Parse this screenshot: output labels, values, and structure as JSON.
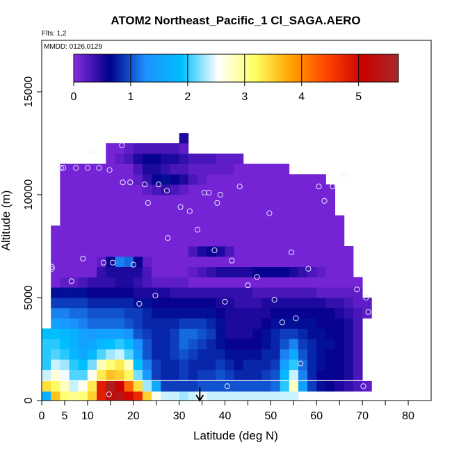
{
  "chart_data": {
    "type": "heatmap",
    "title": "ATOM2 Northeast_Pacific_1 Cl_SAGA.AERO",
    "flights_label": "Flts: 1,2",
    "dates_label": "MMDD: 0126,0129",
    "xlabel": "Latitude (deg N)",
    "ylabel": "Altitude (m)",
    "xlim": [
      0,
      85
    ],
    "ylim": [
      0,
      17500
    ],
    "x_ticks": [
      0,
      5,
      10,
      20,
      30,
      40,
      50,
      60,
      70,
      80
    ],
    "x_ticks_unlabeled": [
      15,
      25,
      35,
      45,
      55,
      65,
      75
    ],
    "y_ticks": [
      0,
      5000,
      10000,
      15000
    ],
    "colorbar": {
      "min": 0,
      "max": 5.7,
      "ticks": [
        0,
        1,
        2,
        3,
        4,
        5
      ],
      "colors": [
        "#8a2be2",
        "#00008b",
        "#1e90ff",
        "#00bfff",
        "#ffffff",
        "#ffff66",
        "#ffa500",
        "#ff4500",
        "#cc0000",
        "#a52a2a"
      ]
    },
    "arrow_latitude": 34.5,
    "lat_columns": [
      1,
      3,
      5,
      7,
      9,
      11,
      13,
      15,
      17,
      19,
      21,
      23,
      25,
      27,
      29,
      31,
      33,
      35,
      37,
      39,
      41,
      43,
      45,
      47,
      49,
      51,
      53,
      55,
      57,
      59,
      61,
      63,
      65,
      67,
      69,
      71
    ],
    "alt_bands": [
      {
        "alt": 250,
        "values": [
          1.7,
          3.6,
          3.1,
          3.0,
          3.1,
          3.5,
          4.8,
          5.3,
          5.4,
          5.0,
          4.7,
          3.5,
          2.6,
          2.4,
          2.4,
          2.3,
          2.4,
          2.5,
          2.4,
          2.4,
          2.4,
          2.4,
          2.4,
          2.4,
          2.4,
          2.4,
          2.4,
          2.4,
          null,
          null,
          null,
          null,
          null,
          null,
          null,
          null
        ]
      },
      {
        "alt": 700,
        "values": [
          3.4,
          3.2,
          2.8,
          2.4,
          2.6,
          3.3,
          4.8,
          5.5,
          5.1,
          4.2,
          3.4,
          2.3,
          1.6,
          0.9,
          0.9,
          0.9,
          0.9,
          1.0,
          1.0,
          1.0,
          1.0,
          1.0,
          1.0,
          1.0,
          1.0,
          1.1,
          2.0,
          2.8,
          1.5,
          0.9,
          0.7,
          0.6,
          0.5,
          0.4,
          0.3,
          0.2
        ]
      },
      {
        "alt": 1250,
        "values": [
          2.4,
          2.7,
          2.5,
          2.1,
          2.1,
          2.6,
          3.3,
          3.6,
          3.5,
          3.2,
          2.2,
          1.4,
          0.9,
          0.8,
          0.8,
          0.9,
          0.8,
          0.9,
          0.9,
          1.0,
          0.9,
          0.8,
          0.8,
          0.8,
          0.9,
          1.0,
          1.8,
          2.4,
          1.2,
          0.8,
          0.6,
          0.6,
          0.6,
          0.5,
          0.3,
          null
        ]
      },
      {
        "alt": 1750,
        "values": [
          2.0,
          2.4,
          2.3,
          2.0,
          1.9,
          2.2,
          2.8,
          3.1,
          3.3,
          2.8,
          1.9,
          1.2,
          0.9,
          0.8,
          0.8,
          0.9,
          0.8,
          0.8,
          0.8,
          0.9,
          0.8,
          0.7,
          0.8,
          0.8,
          0.8,
          0.9,
          1.5,
          2.0,
          1.1,
          0.8,
          0.7,
          0.6,
          0.6,
          0.5,
          0.3,
          null
        ]
      },
      {
        "alt": 2250,
        "values": [
          2.0,
          2.1,
          2.0,
          1.8,
          1.6,
          1.8,
          2.1,
          2.3,
          2.4,
          2.1,
          1.5,
          1.0,
          0.8,
          0.8,
          0.9,
          1.0,
          0.9,
          0.8,
          0.8,
          0.8,
          0.7,
          0.7,
          0.7,
          0.7,
          0.8,
          0.8,
          1.2,
          1.6,
          1.0,
          0.8,
          0.7,
          0.6,
          0.6,
          0.5,
          0.3,
          null
        ]
      },
      {
        "alt": 2750,
        "values": [
          2.0,
          2.0,
          1.9,
          1.7,
          1.5,
          1.6,
          1.8,
          1.9,
          2.0,
          1.8,
          1.3,
          1.0,
          0.8,
          0.8,
          0.9,
          1.1,
          1.0,
          0.9,
          0.8,
          0.7,
          0.6,
          0.6,
          0.6,
          0.6,
          0.7,
          0.8,
          1.0,
          1.2,
          0.9,
          0.8,
          0.7,
          0.7,
          0.6,
          0.5,
          0.3,
          null
        ]
      },
      {
        "alt": 3250,
        "values": [
          1.9,
          1.9,
          1.8,
          1.7,
          1.5,
          1.4,
          1.5,
          1.5,
          1.5,
          1.3,
          1.0,
          0.9,
          0.8,
          0.8,
          0.9,
          1.1,
          1.1,
          1.0,
          0.9,
          0.7,
          0.5,
          0.5,
          0.5,
          0.6,
          0.7,
          0.8,
          0.9,
          0.9,
          0.8,
          0.7,
          0.7,
          0.6,
          0.6,
          0.5,
          0.3,
          null
        ]
      },
      {
        "alt": 3750,
        "values": [
          null,
          1.5,
          1.4,
          1.3,
          1.2,
          1.1,
          1.1,
          1.1,
          1.1,
          1.0,
          0.9,
          0.8,
          0.8,
          0.8,
          0.8,
          0.9,
          0.9,
          0.9,
          0.8,
          0.7,
          0.5,
          0.5,
          0.5,
          0.5,
          0.6,
          0.7,
          0.7,
          0.7,
          0.7,
          0.7,
          0.6,
          0.6,
          0.6,
          0.5,
          0.3,
          null
        ]
      },
      {
        "alt": 4250,
        "values": [
          null,
          1.2,
          1.2,
          1.1,
          1.1,
          1.0,
          1.0,
          1.0,
          1.0,
          0.9,
          0.9,
          0.8,
          0.7,
          0.7,
          0.7,
          0.7,
          0.7,
          0.7,
          0.7,
          0.6,
          0.5,
          0.5,
          0.5,
          0.5,
          0.5,
          0.6,
          0.6,
          0.6,
          0.6,
          0.6,
          0.6,
          0.6,
          0.5,
          0.4,
          0.3,
          0.2
        ]
      },
      {
        "alt": 4750,
        "values": [
          null,
          0.9,
          0.9,
          0.9,
          0.9,
          0.8,
          0.8,
          0.8,
          0.8,
          0.8,
          0.7,
          0.7,
          0.6,
          0.6,
          0.6,
          0.6,
          0.6,
          0.6,
          0.6,
          0.5,
          0.5,
          0.4,
          0.4,
          0.4,
          0.5,
          0.5,
          0.5,
          0.5,
          0.5,
          0.5,
          0.5,
          0.4,
          0.4,
          0.3,
          0.2,
          0.2
        ]
      },
      {
        "alt": 5250,
        "values": [
          null,
          0.7,
          0.7,
          0.7,
          0.7,
          0.6,
          0.6,
          0.6,
          0.6,
          0.6,
          0.5,
          0.5,
          0.5,
          0.5,
          0.4,
          0.4,
          0.4,
          0.4,
          0.4,
          0.4,
          0.4,
          0.4,
          0.4,
          0.3,
          0.3,
          0.3,
          0.3,
          0.3,
          0.3,
          0.3,
          0.2,
          0.2,
          0.2,
          0.2,
          0.2,
          null
        ]
      },
      {
        "alt": 5750,
        "values": [
          null,
          0.1,
          0.2,
          0.2,
          0.3,
          0.4,
          0.4,
          0.4,
          0.5,
          0.5,
          0.4,
          0.3,
          0.2,
          0.2,
          0.2,
          0.2,
          0.1,
          0.1,
          0.1,
          0.1,
          0.1,
          0.1,
          0.1,
          0.1,
          0.1,
          0.1,
          0.1,
          0.1,
          0.1,
          0.1,
          0.1,
          0.1,
          0.1,
          0.1,
          0.1,
          null
        ]
      },
      {
        "alt": 6250,
        "values": [
          null,
          0.1,
          0.1,
          0.1,
          0.1,
          0.1,
          0.4,
          0.5,
          0.5,
          0.5,
          0.5,
          0.3,
          0.1,
          0.1,
          0.1,
          0.1,
          0.2,
          0.3,
          0.4,
          0.5,
          0.5,
          0.5,
          0.5,
          0.6,
          0.6,
          0.6,
          0.6,
          0.5,
          0.4,
          0.3,
          0.2,
          0.1,
          0.1,
          0.1,
          null,
          null
        ]
      },
      {
        "alt": 6750,
        "values": [
          null,
          0.1,
          0.1,
          0.1,
          0.1,
          0.1,
          0.2,
          0.6,
          1.2,
          1.1,
          0.6,
          0.2,
          0.1,
          0.1,
          0.1,
          0.1,
          0.1,
          0.1,
          0.1,
          0.1,
          0.1,
          0.1,
          0.1,
          0.1,
          0.1,
          0.1,
          0.1,
          0.1,
          0.1,
          0.1,
          0.1,
          0.1,
          0.1,
          0.1,
          null,
          null
        ]
      },
      {
        "alt": 7250,
        "values": [
          null,
          0.1,
          0.1,
          0.1,
          0.1,
          0.1,
          0.1,
          0.1,
          0.1,
          0.1,
          0.1,
          0.1,
          0.1,
          0.1,
          0.1,
          0.1,
          0.3,
          0.5,
          0.6,
          0.5,
          0.3,
          0.1,
          0.1,
          0.1,
          0.1,
          0.1,
          0.1,
          0.1,
          0.1,
          0.1,
          0.1,
          0.1,
          0.1,
          0.1,
          null,
          null
        ]
      },
      {
        "alt": 7750,
        "values": [
          null,
          0.1,
          0.1,
          0.1,
          0.1,
          0.1,
          0.1,
          0.1,
          0.1,
          0.1,
          0.1,
          0.1,
          0.1,
          0.1,
          0.1,
          0.1,
          0.1,
          0.1,
          0.1,
          0.1,
          0.1,
          0.1,
          0.1,
          0.1,
          0.1,
          0.1,
          0.1,
          0.1,
          0.1,
          0.1,
          0.1,
          0.1,
          0.1,
          null,
          null,
          null
        ]
      },
      {
        "alt": 8250,
        "values": [
          null,
          0.1,
          0.1,
          0.1,
          0.1,
          0.1,
          0.1,
          0.1,
          0.1,
          0.1,
          0.1,
          0.1,
          0.1,
          0.1,
          0.1,
          0.1,
          0.1,
          0.1,
          0.1,
          0.1,
          0.1,
          0.1,
          0.1,
          0.1,
          0.1,
          0.1,
          0.1,
          0.1,
          0.1,
          0.1,
          0.1,
          0.1,
          0.1,
          null,
          null,
          null
        ]
      },
      {
        "alt": 8750,
        "values": [
          null,
          null,
          0.1,
          0.1,
          0.1,
          0.1,
          0.1,
          0.1,
          0.1,
          0.1,
          0.1,
          0.1,
          0.1,
          0.1,
          0.1,
          0.1,
          0.1,
          0.1,
          0.1,
          0.1,
          0.1,
          0.1,
          0.1,
          0.1,
          0.1,
          0.1,
          0.1,
          0.1,
          0.1,
          0.1,
          0.1,
          0.1,
          0.1,
          null,
          null,
          null
        ]
      },
      {
        "alt": 9250,
        "values": [
          null,
          null,
          0.1,
          0.1,
          0.1,
          0.1,
          0.1,
          0.1,
          0.1,
          0.1,
          0.1,
          0.1,
          0.1,
          0.1,
          0.1,
          0.1,
          0.1,
          0.1,
          0.1,
          0.1,
          0.1,
          0.1,
          0.1,
          0.1,
          0.1,
          0.1,
          0.1,
          0.1,
          0.1,
          0.1,
          0.1,
          0.1,
          null,
          null,
          null,
          null
        ]
      },
      {
        "alt": 9750,
        "values": [
          null,
          null,
          0.1,
          0.1,
          0.1,
          0.1,
          0.1,
          0.1,
          0.1,
          0.1,
          0.1,
          0.1,
          0.1,
          0.1,
          0.1,
          0.1,
          0.1,
          0.1,
          0.1,
          0.1,
          0.1,
          0.1,
          0.1,
          0.1,
          0.1,
          0.1,
          0.1,
          0.1,
          0.1,
          0.1,
          0.1,
          0.1,
          null,
          null,
          null,
          null
        ]
      },
      {
        "alt": 10250,
        "values": [
          null,
          null,
          0.1,
          0.1,
          0.1,
          0.1,
          0.1,
          0.1,
          0.1,
          0.1,
          0.1,
          0.2,
          0.3,
          0.4,
          0.3,
          0.2,
          0.1,
          0.1,
          0.1,
          0.1,
          0.1,
          0.1,
          0.1,
          0.1,
          0.1,
          0.1,
          0.1,
          0.1,
          0.1,
          0.1,
          0.1,
          0.1,
          null,
          null,
          null,
          null
        ]
      },
      {
        "alt": 10750,
        "values": [
          null,
          null,
          0.1,
          0.1,
          0.1,
          0.1,
          0.1,
          0.1,
          0.1,
          0.1,
          0.2,
          0.4,
          0.6,
          0.7,
          0.6,
          0.5,
          0.3,
          0.2,
          0.1,
          0.1,
          0.1,
          0.1,
          0.1,
          0.1,
          0.1,
          0.1,
          0.1,
          0.1,
          0.1,
          0.1,
          0.1,
          null,
          null,
          null,
          null,
          null
        ]
      },
      {
        "alt": 11250,
        "values": [
          null,
          null,
          0.1,
          0.1,
          0.1,
          0.1,
          0.1,
          0.1,
          0.1,
          0.1,
          0.3,
          0.5,
          0.5,
          0.4,
          0.3,
          0.3,
          0.2,
          0.2,
          0.2,
          0.2,
          0.2,
          0.1,
          0.1,
          0.1,
          0.1,
          0.1,
          0.1,
          null,
          null,
          null,
          null,
          null,
          null,
          null,
          null,
          null
        ]
      },
      {
        "alt": 11750,
        "values": [
          null,
          null,
          null,
          null,
          null,
          null,
          null,
          0.1,
          0.2,
          0.3,
          0.5,
          0.6,
          0.6,
          0.5,
          0.5,
          0.4,
          0.3,
          0.3,
          0.3,
          0.2,
          0.2,
          0.2,
          null,
          null,
          null,
          null,
          null,
          null,
          null,
          null,
          null,
          null,
          null,
          null,
          null,
          null
        ]
      },
      {
        "alt": 12250,
        "values": [
          null,
          null,
          null,
          null,
          null,
          null,
          null,
          0.1,
          0.1,
          0.2,
          0.3,
          0.3,
          0.3,
          0.3,
          0.3,
          0.2,
          null,
          null,
          null,
          null,
          null,
          null,
          null,
          null,
          null,
          null,
          null,
          null,
          null,
          null,
          null,
          null,
          null,
          null,
          null,
          null
        ]
      },
      {
        "alt": 12750,
        "values": [
          null,
          null,
          null,
          null,
          null,
          null,
          null,
          null,
          null,
          null,
          null,
          null,
          null,
          null,
          null,
          0.5,
          null,
          null,
          null,
          null,
          null,
          null,
          null,
          null,
          null,
          null,
          null,
          null,
          null,
          null,
          null,
          null,
          null,
          null,
          null,
          null
        ]
      }
    ],
    "observations": [
      [
        2.2,
        6500
      ],
      [
        2.2,
        6400
      ],
      [
        4.2,
        11300
      ],
      [
        4.7,
        11300
      ],
      [
        6.5,
        5800
      ],
      [
        7.5,
        11300
      ],
      [
        9.0,
        6900
      ],
      [
        10.0,
        11300
      ],
      [
        11.0,
        12100
      ],
      [
        12.5,
        11300
      ],
      [
        13.5,
        6700
      ],
      [
        14.8,
        11200
      ],
      [
        14.7,
        300
      ],
      [
        15.5,
        6700
      ],
      [
        17.5,
        12400
      ],
      [
        17.7,
        10600
      ],
      [
        19.3,
        10600
      ],
      [
        20.0,
        6600
      ],
      [
        21.3,
        4700
      ],
      [
        22.5,
        10500
      ],
      [
        23.2,
        9600
      ],
      [
        24.8,
        5100
      ],
      [
        25.5,
        10500
      ],
      [
        27.3,
        10200
      ],
      [
        27.5,
        7900
      ],
      [
        30.3,
        9400
      ],
      [
        32.3,
        9200
      ],
      [
        34.0,
        8300
      ],
      [
        35.5,
        10100
      ],
      [
        36.5,
        10100
      ],
      [
        37.7,
        7300
      ],
      [
        38.3,
        9600
      ],
      [
        39.0,
        10000
      ],
      [
        40.0,
        4800
      ],
      [
        40.5,
        700
      ],
      [
        41.5,
        6800
      ],
      [
        43.2,
        10400
      ],
      [
        45.0,
        5600
      ],
      [
        47.0,
        6000
      ],
      [
        49.7,
        9100
      ],
      [
        50.8,
        4900
      ],
      [
        52.5,
        3800
      ],
      [
        54.5,
        7200
      ],
      [
        55.5,
        4000
      ],
      [
        56.5,
        1800
      ],
      [
        58.2,
        6400
      ],
      [
        60.5,
        10400
      ],
      [
        61.7,
        9700
      ],
      [
        63.5,
        10400
      ],
      [
        66.0,
        11000
      ],
      [
        68.8,
        5400
      ],
      [
        70.2,
        700
      ],
      [
        70.8,
        5000
      ],
      [
        71.3,
        4300
      ]
    ]
  }
}
